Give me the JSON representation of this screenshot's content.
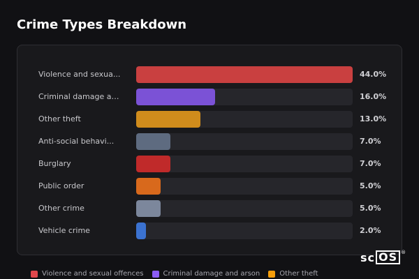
{
  "title": "Crime Types Breakdown",
  "logo": {
    "part1": "sc",
    "part2": "OS",
    "reg": "®"
  },
  "chart_data": {
    "type": "bar",
    "orientation": "horizontal",
    "title": "Crime Types Breakdown",
    "xlim": [
      0,
      44
    ],
    "categories": [
      "Violence and sexua...",
      "Criminal damage an...",
      "Other theft",
      "Anti-social behavi...",
      "Burglary",
      "Public order",
      "Other crime",
      "Vehicle crime"
    ],
    "values": [
      44.0,
      16.0,
      13.0,
      7.0,
      7.0,
      5.0,
      5.0,
      2.0
    ],
    "value_labels": [
      "44.0%",
      "16.0%",
      "13.0%",
      "7.0%",
      "7.0%",
      "5.0%",
      "5.0%",
      "2.0%"
    ],
    "colors": [
      "#c94040",
      "#7b52d6",
      "#d08c1c",
      "#5e6b80",
      "#c02a2a",
      "#d8691c",
      "#7c879c",
      "#3b72d0"
    ],
    "legend": {
      "placement": "bottom",
      "entries": [
        {
          "label": "Violence and sexual offences",
          "color": "#e0474c"
        },
        {
          "label": "Criminal damage and arson",
          "color": "#8b5cf6"
        },
        {
          "label": "Other theft",
          "color": "#f59e0b"
        }
      ]
    }
  }
}
